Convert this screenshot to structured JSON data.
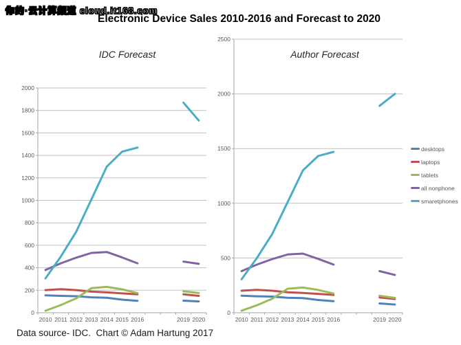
{
  "watermark": "你的·云计算频道 cloud.it168.com",
  "title": "Electronic Device Sales 2010-2016 and Forecast to 2020",
  "caption": "Data source- IDC.  Chart © Adam Hartung 2017",
  "colors": {
    "desktops": "#4F81BD",
    "laptops": "#C0504D",
    "tablets": "#9BBB59",
    "all_nonphone": "#8064A2",
    "smartphones": "#4BACC6",
    "gridline": "#BFBFBF",
    "axis": "#A6A6A6",
    "tick_text": "#595959"
  },
  "legend": [
    {
      "label": "desktops",
      "color": "#4F81BD"
    },
    {
      "label": "laptops",
      "color": "#C0504D"
    },
    {
      "label": "tablets",
      "color": "#9BBB59"
    },
    {
      "label": "all nonphone",
      "color": "#8064A2"
    },
    {
      "label": "smaretphones",
      "color": "#4BACC6"
    }
  ],
  "chart_data": [
    {
      "type": "line",
      "title": "IDC Forecast",
      "categories": [
        "2010",
        "2011",
        "2012",
        "2013",
        "2014",
        "2015",
        "2016",
        "2017",
        "2018",
        "2019",
        "2020"
      ],
      "category_labels": [
        "2010",
        "2011",
        "2012",
        "2013",
        "2014",
        "2015",
        "2016",
        "",
        "",
        "2019",
        "2020"
      ],
      "xlabel": "",
      "ylabel": "",
      "ylim": [
        0,
        2000
      ],
      "ytick_step": 200,
      "grid": "horizontal",
      "legend_position": "none",
      "note": "no data plotted for 2017-2018 (gap between actuals and forecast)",
      "series": [
        {
          "name": "desktops",
          "color": "#4F81BD",
          "values": [
            155,
            150,
            147,
            137,
            133,
            116,
            105,
            null,
            null,
            107,
            100
          ]
        },
        {
          "name": "laptops",
          "color": "#C0504D",
          "values": [
            201,
            209,
            201,
            187,
            181,
            172,
            163,
            null,
            null,
            164,
            150
          ]
        },
        {
          "name": "tablets",
          "color": "#9BBB59",
          "values": [
            18,
            68,
            128,
            219,
            230,
            208,
            175,
            null,
            null,
            190,
            175
          ]
        },
        {
          "name": "all nonphone",
          "color": "#8064A2",
          "values": [
            380,
            440,
            490,
            532,
            540,
            492,
            440,
            null,
            null,
            455,
            435
          ]
        },
        {
          "name": "smartphones",
          "color": "#4BACC6",
          "values": [
            305,
            500,
            720,
            1010,
            1300,
            1433,
            1470,
            null,
            null,
            1870,
            1710
          ]
        }
      ]
    },
    {
      "type": "line",
      "title": "Author Forecast",
      "categories": [
        "2010",
        "2011",
        "2012",
        "2013",
        "2014",
        "2015",
        "2016",
        "2017",
        "2018",
        "2019",
        "2020"
      ],
      "category_labels": [
        "2010",
        "2011",
        "2012",
        "2013",
        "2014",
        "2015",
        "2016",
        "",
        "",
        "2019",
        "2020"
      ],
      "xlabel": "",
      "ylabel": "",
      "ylim": [
        0,
        2500
      ],
      "ytick_step": 500,
      "grid": "horizontal",
      "legend_position": "right",
      "note": "no data plotted for 2017-2018 (gap between actuals and forecast)",
      "series": [
        {
          "name": "desktops",
          "color": "#4F81BD",
          "values": [
            155,
            150,
            147,
            137,
            133,
            116,
            105,
            null,
            null,
            85,
            75
          ]
        },
        {
          "name": "laptops",
          "color": "#C0504D",
          "values": [
            201,
            209,
            201,
            187,
            181,
            172,
            163,
            null,
            null,
            140,
            125
          ]
        },
        {
          "name": "tablets",
          "color": "#9BBB59",
          "values": [
            18,
            68,
            128,
            219,
            230,
            208,
            175,
            null,
            null,
            155,
            135
          ]
        },
        {
          "name": "all nonphone",
          "color": "#8064A2",
          "values": [
            380,
            440,
            490,
            532,
            540,
            492,
            440,
            null,
            null,
            380,
            345
          ]
        },
        {
          "name": "smartphones",
          "color": "#4BACC6",
          "values": [
            305,
            500,
            720,
            1010,
            1300,
            1433,
            1470,
            null,
            null,
            1890,
            2000
          ]
        }
      ]
    }
  ]
}
